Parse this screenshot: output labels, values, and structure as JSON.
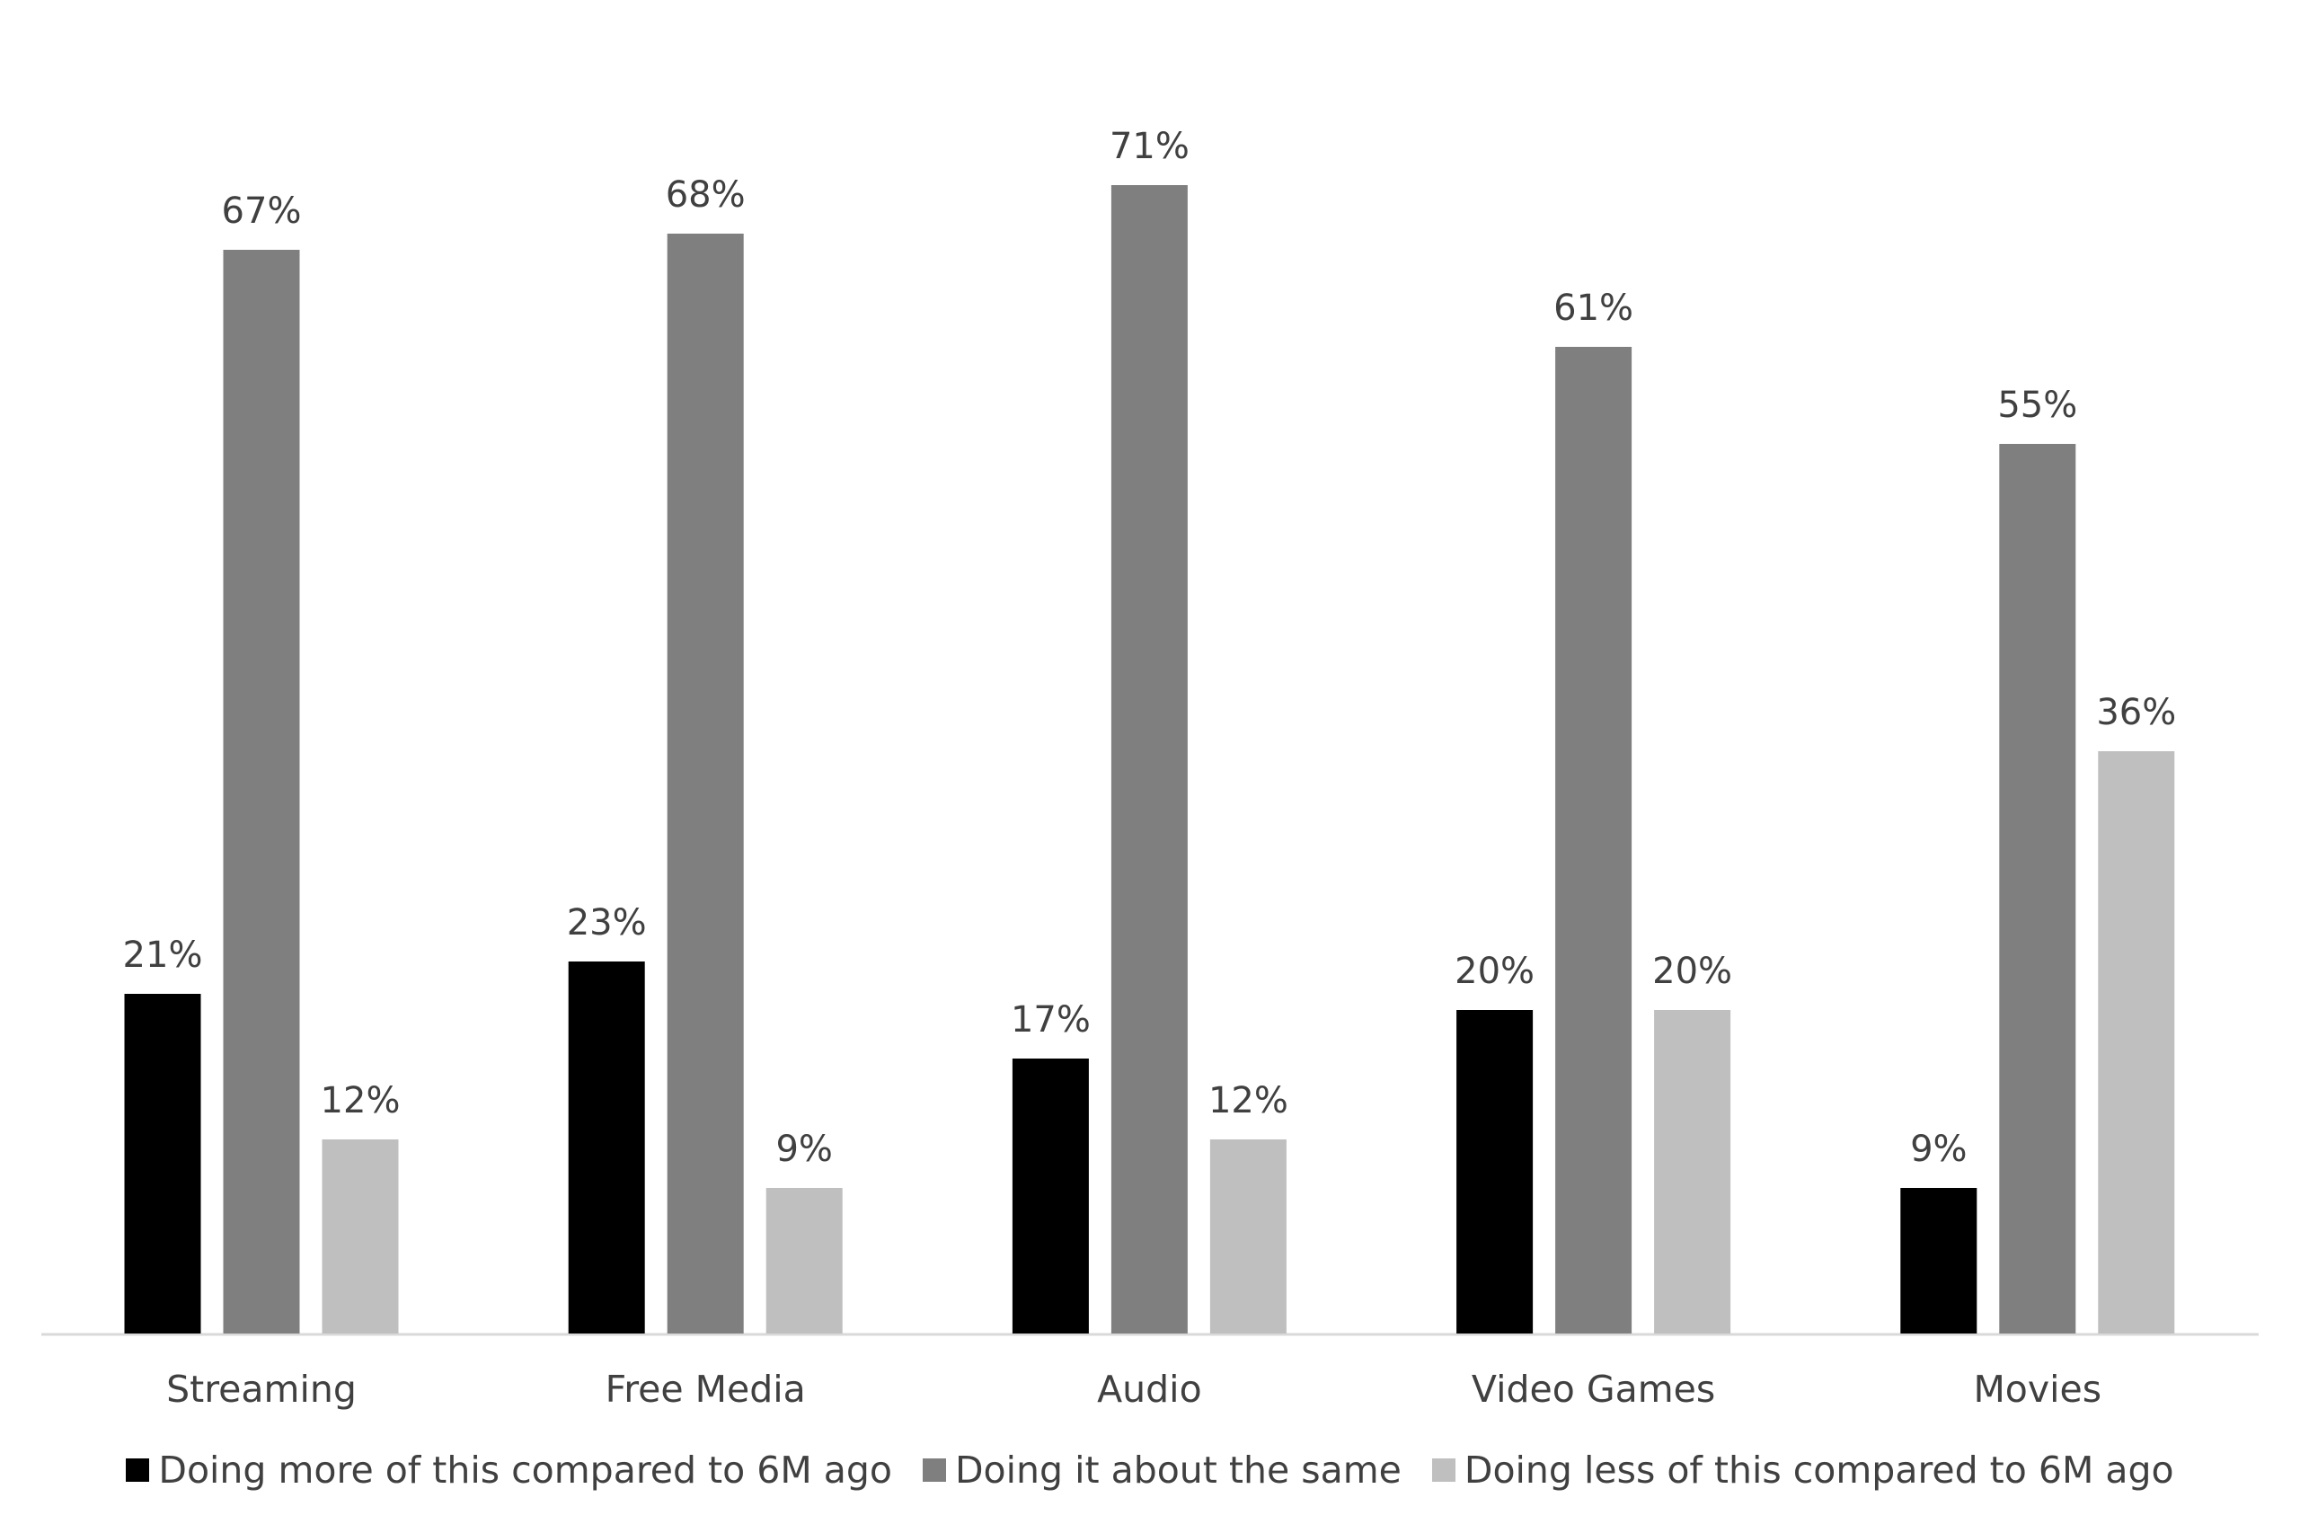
{
  "chart_data": {
    "type": "bar",
    "categories": [
      "Streaming",
      "Free Media",
      "Audio",
      "Video Games",
      "Movies"
    ],
    "series": [
      {
        "name": "Doing more of this compared to 6M ago",
        "color": "#000000",
        "values": [
          21,
          23,
          17,
          20,
          9
        ],
        "value_labels": [
          "21%",
          "23%",
          "17%",
          "20%",
          "9%"
        ]
      },
      {
        "name": "Doing it about the same",
        "color": "#7f7f7f",
        "values": [
          67,
          68,
          71,
          61,
          55
        ],
        "value_labels": [
          "67%",
          "68%",
          "71%",
          "61%",
          "55%"
        ]
      },
      {
        "name": "Doing less of this compared to 6M ago",
        "color": "#bfbfbf",
        "values": [
          12,
          9,
          12,
          20,
          36
        ],
        "value_labels": [
          "12%",
          "9%",
          "12%",
          "20%",
          "36%"
        ]
      }
    ],
    "legend": "bottom"
  }
}
